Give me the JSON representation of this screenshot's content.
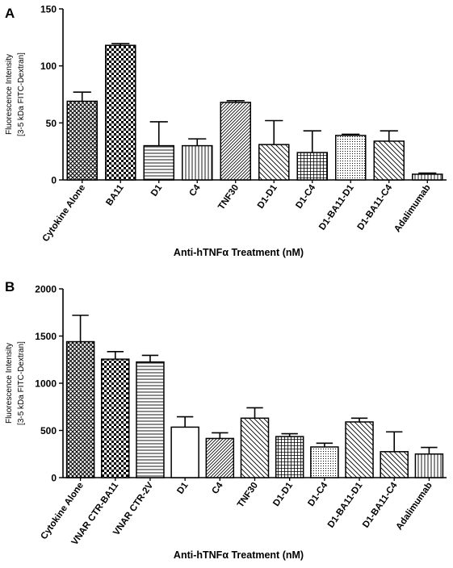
{
  "chart_data": [
    {
      "panel_label": "A",
      "type": "bar",
      "xlabel": "Anti-hTNFα Treatment (nM)",
      "ylabel_line1": "Fluorescence Intensity",
      "ylabel_line2": "[3-5 kDa FITC-Dextran]",
      "ylim": [
        0,
        150
      ],
      "yticks": [
        0,
        50,
        100,
        150
      ],
      "categories": [
        "Cytokine Alone",
        "BA11",
        "D1",
        "C4",
        "TNF30",
        "D1-D1",
        "D1-C4",
        "D1-BA11-D1",
        "D1-BA11-C4",
        "Adalimumab"
      ],
      "values": [
        69,
        118,
        30,
        30,
        68,
        31,
        24,
        39,
        34,
        5
      ],
      "errors": [
        8,
        1.5,
        21,
        6,
        1.5,
        21,
        19,
        1,
        9,
        1
      ],
      "patterns": [
        "crosshatch",
        "check",
        "hlines",
        "vlines",
        "diagdown",
        "diagup",
        "grid",
        "dots",
        "diagup",
        "vlines"
      ],
      "grid": false,
      "legend": "none"
    },
    {
      "panel_label": "B",
      "type": "bar",
      "xlabel": "Anti-hTNFα Treatment (nM)",
      "ylabel_line1": "Fluorescence Intensity",
      "ylabel_line2": "[3-5 kDa FITC-Dextran]",
      "ylim": [
        0,
        2000
      ],
      "yticks": [
        0,
        500,
        1000,
        1500,
        2000
      ],
      "categories": [
        "Cytokine Alone",
        "VNAR CTR-BA11",
        "VNAR CTR-2V",
        "D1",
        "C4",
        "TNF30",
        "D1-D1",
        "D1-C4",
        "D1-BA11-D1",
        "D1-BA11-C4",
        "Adalimumab"
      ],
      "values": [
        1440,
        1255,
        1225,
        535,
        415,
        630,
        435,
        325,
        590,
        275,
        250
      ],
      "errors": [
        280,
        80,
        70,
        110,
        60,
        110,
        30,
        40,
        40,
        210,
        70
      ],
      "patterns": [
        "crosshatch",
        "check",
        "hlines",
        "none",
        "diagdown",
        "diagup",
        "grid",
        "dots",
        "diagup",
        "diagup",
        "vlines"
      ],
      "grid": false,
      "legend": "none"
    }
  ]
}
